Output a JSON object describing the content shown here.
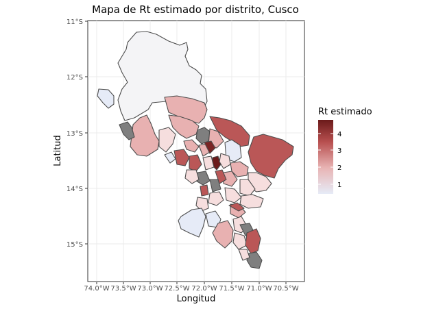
{
  "map": {
    "title": "Mapa de Rt estimado por distrito, Cusco",
    "xlabel": "Longitud",
    "ylabel": "Latitud",
    "y_ticks": [
      "11°S",
      "12°S",
      "13°S",
      "14°S",
      "15°S"
    ],
    "x_ticks": [
      "74.0°W",
      "73.5°W",
      "73.0°W",
      "72.5°W",
      "72.0°W",
      "71.5°W",
      "71.0°W",
      "70.5°W"
    ],
    "legend": {
      "title": "Rt estimado",
      "ticks": [
        "4",
        "3",
        "2",
        "1"
      ],
      "gradient": [
        "#e6ebf7",
        "#e8b4b4",
        "#b85050",
        "#6b1a1a"
      ]
    },
    "colors": {
      "panel_border": "#333333",
      "grid": "#ebebeb",
      "district_border": "#4d4d4d",
      "na_fill": "#7f7f7f",
      "very_low": "#e6ebf7",
      "low": "#f4f4f6",
      "light": "#f6dede",
      "mid": "#e8b1b1",
      "high": "#ba5757",
      "very_high": "#7a2424"
    }
  }
}
